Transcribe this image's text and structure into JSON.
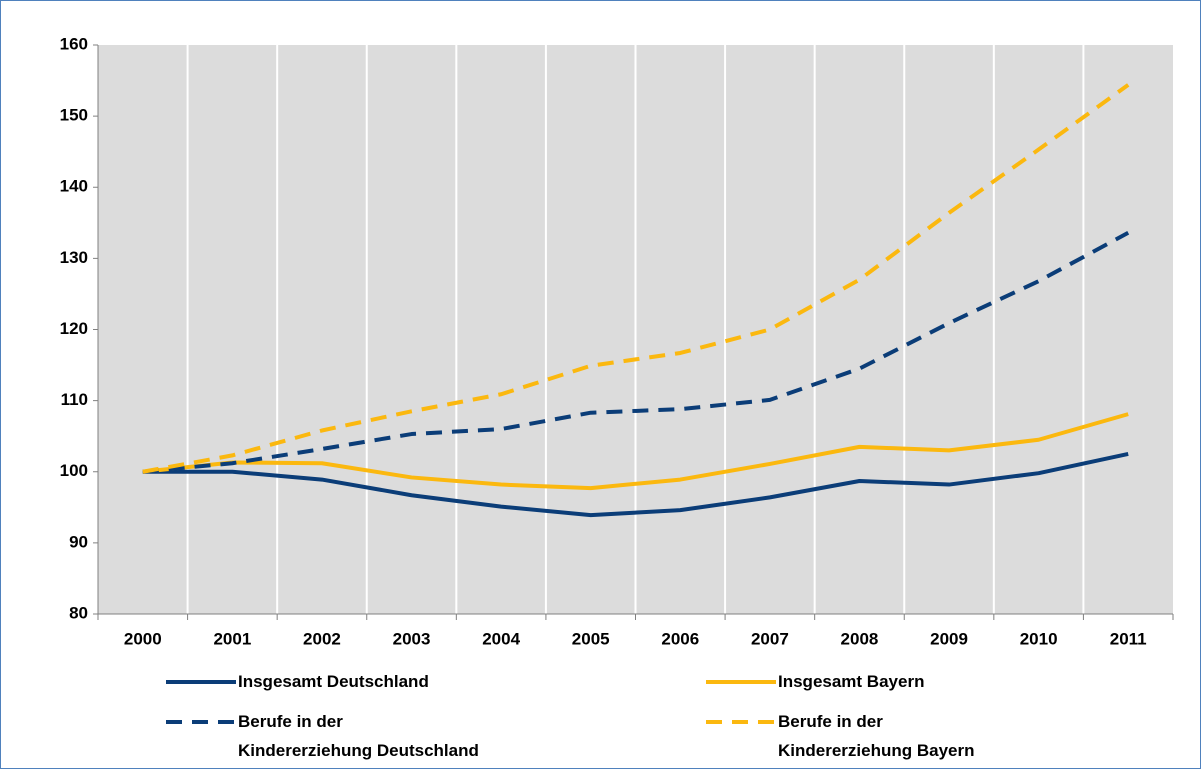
{
  "chart_data": {
    "type": "line",
    "categories": [
      "2000",
      "2001",
      "2002",
      "2003",
      "2004",
      "2005",
      "2006",
      "2007",
      "2008",
      "2009",
      "2010",
      "2011"
    ],
    "series": [
      {
        "name": "Insgesamt Deutschland",
        "color": "#0b3d78",
        "dashed": false,
        "values": [
          100,
          100,
          98.9,
          96.7,
          95.1,
          93.9,
          94.6,
          96.4,
          98.7,
          98.2,
          99.8,
          102.5
        ]
      },
      {
        "name": "Insgesamt Bayern",
        "color": "#fbb80f",
        "dashed": false,
        "values": [
          100,
          101.3,
          101.2,
          99.2,
          98.2,
          97.7,
          98.9,
          101.1,
          103.5,
          103.0,
          104.5,
          108.1
        ]
      },
      {
        "name": "Berufe in der\nKindererziehung Deutschland",
        "color": "#0b3d78",
        "dashed": true,
        "values": [
          100,
          101.2,
          103.2,
          105.3,
          106.0,
          108.3,
          108.8,
          110.1,
          114.5,
          120.9,
          126.8,
          133.6
        ]
      },
      {
        "name": "Berufe in der\nKindererziehung Bayern",
        "color": "#fbb80f",
        "dashed": true,
        "values": [
          100,
          102.3,
          105.8,
          108.5,
          110.9,
          114.9,
          116.7,
          120.0,
          127.0,
          136.4,
          145.3,
          154.4
        ]
      }
    ],
    "ylim": [
      80,
      160
    ],
    "yticks": [
      80,
      90,
      100,
      110,
      120,
      130,
      140,
      150,
      160
    ],
    "legend": "bottom"
  }
}
